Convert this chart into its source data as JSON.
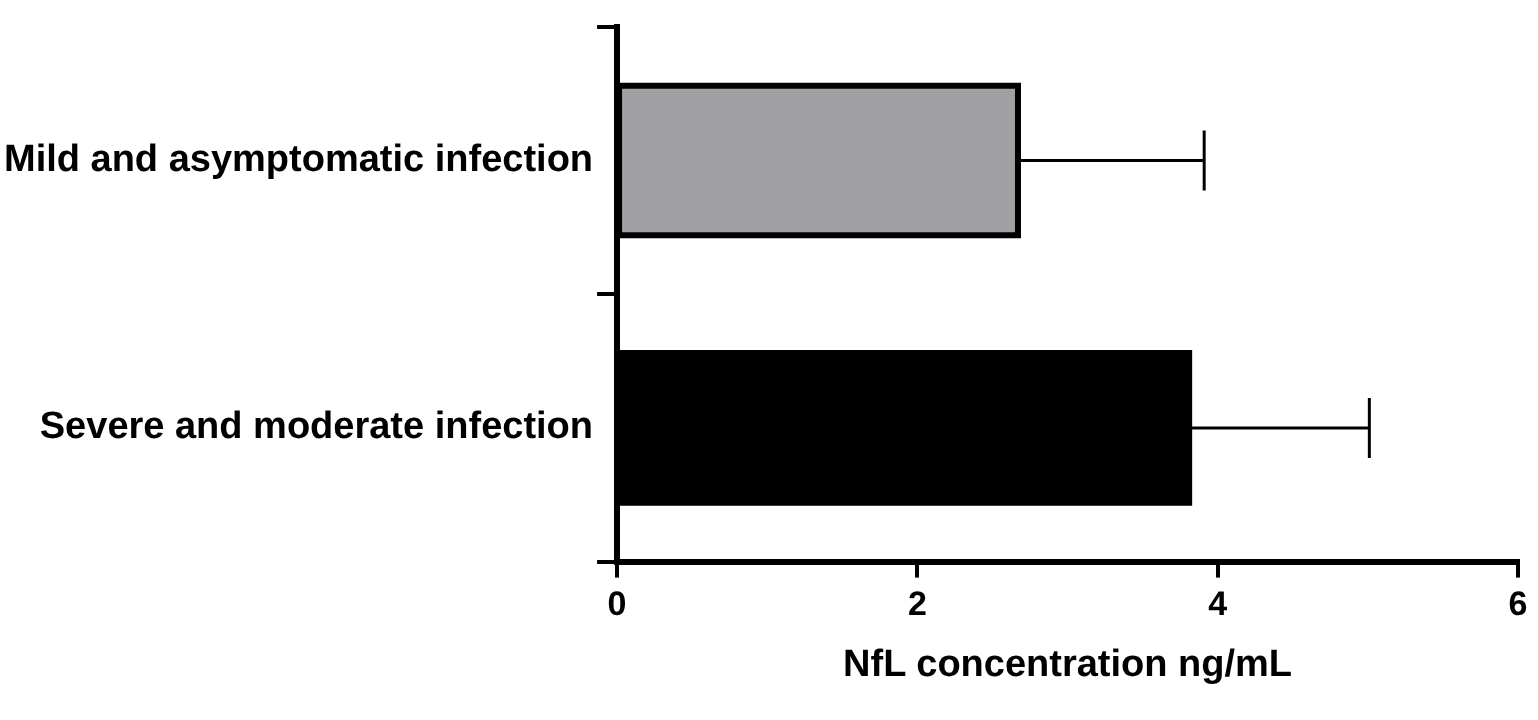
{
  "chart_data": {
    "type": "bar",
    "orientation": "horizontal",
    "categories": [
      "Mild and asymptomatic infection",
      "Severe and moderate infection"
    ],
    "values": [
      2.67,
      3.81
    ],
    "colors": [
      "#a0a0a4",
      "#000000"
    ],
    "errors": [
      [
        2.67,
        3.91
      ],
      [
        3.81,
        5.01
      ]
    ],
    "xlabel": "NfL concentration ng/mL",
    "xlim": [
      0,
      6
    ],
    "xticks": [
      0,
      2,
      4,
      6
    ],
    "grid": false,
    "legend": false
  }
}
